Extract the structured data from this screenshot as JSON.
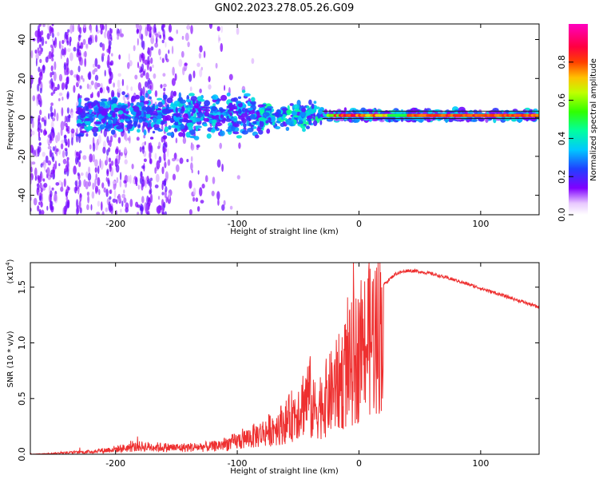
{
  "chart_data": [
    {
      "type": "heatmap",
      "title": "GN02.2023.278.05.26.G09",
      "xlabel": "Height of straight line (km)",
      "ylabel": "Frequency (Hz)",
      "xlim": [
        -270,
        148
      ],
      "ylim": [
        -50,
        48
      ],
      "xticks": [
        "-200",
        "-100",
        "0",
        "100"
      ],
      "xtick_values": [
        -200,
        -100,
        0,
        100
      ],
      "yticks": [
        "-40",
        "-20",
        "0",
        "20",
        "40"
      ],
      "ytick_values": [
        -40,
        -20,
        0,
        20,
        40
      ],
      "colorbar": {
        "label": "Normalized spectral amplitude",
        "ticks": [
          "0.0",
          "0.2",
          "0.4",
          "0.6",
          "0.8"
        ],
        "tick_values": [
          0.0,
          0.2,
          0.4,
          0.6,
          0.8
        ],
        "range": [
          0,
          1
        ],
        "colormap": "rainbow (violet-blue-cyan-green-yellow-red-magenta)"
      },
      "features": {
        "band_center_hz": 1,
        "ridge_start_km": -25,
        "ridge_amplitude": 0.85,
        "noise_region_km": [
          -270,
          -80
        ],
        "line_color": "#202020"
      }
    },
    {
      "type": "line",
      "xlabel": "Height of straight line (km)",
      "ylabel": "SNR (10 * v/v)",
      "scale_label": "(x10",
      "scale_exp": "4",
      "scale_suffix": ")",
      "xlim": [
        -270,
        148
      ],
      "ylim": [
        0,
        1.72
      ],
      "xticks": [
        "-200",
        "-100",
        "0",
        "100"
      ],
      "xtick_values": [
        -200,
        -100,
        0,
        100
      ],
      "yticks": [
        "0.0",
        "0.5",
        "1.0",
        "1.5"
      ],
      "ytick_values": [
        0.0,
        0.5,
        1.0,
        1.5
      ],
      "series_color": "#ee3030",
      "x": [
        -270,
        -220,
        -200,
        -180,
        -150,
        -120,
        -100,
        -80,
        -60,
        -50,
        -40,
        -30,
        -20,
        -10,
        0,
        10,
        20,
        30,
        40,
        50,
        60,
        80,
        100,
        120,
        148
      ],
      "y": [
        0.0,
        0.02,
        0.04,
        0.06,
        0.05,
        0.06,
        0.1,
        0.16,
        0.25,
        0.35,
        0.48,
        0.6,
        0.75,
        0.95,
        1.15,
        1.35,
        1.52,
        1.62,
        1.65,
        1.64,
        1.62,
        1.56,
        1.49,
        1.42,
        1.32
      ]
    }
  ]
}
